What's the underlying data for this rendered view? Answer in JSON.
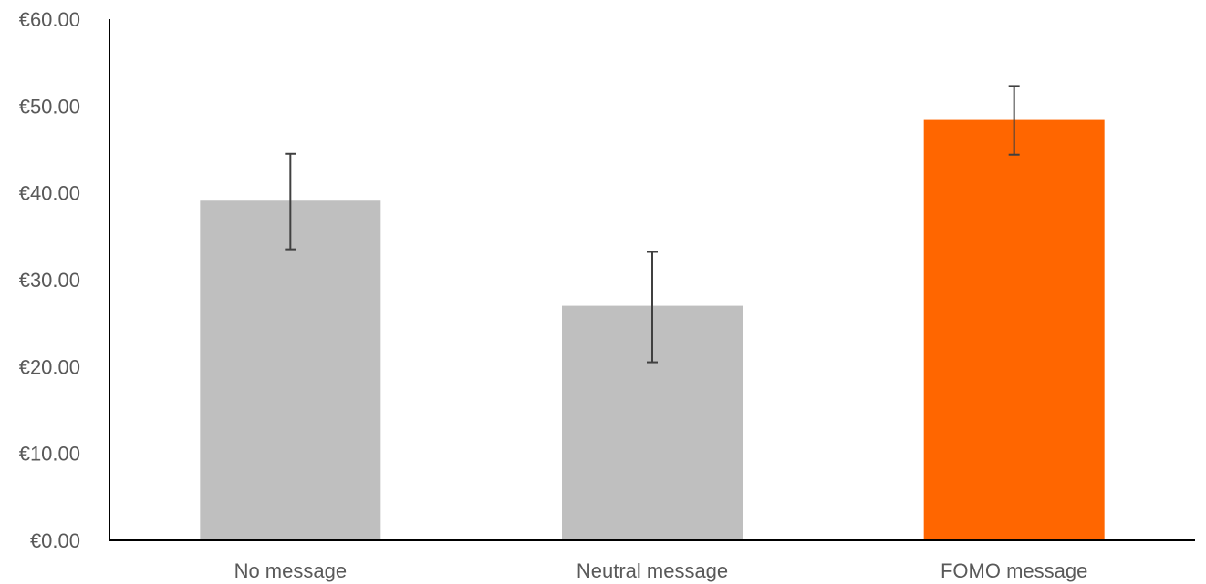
{
  "chart_data": {
    "type": "bar",
    "title": "",
    "xlabel": "",
    "ylabel": "",
    "categories": [
      "No message",
      "Neutral message",
      "FOMO message"
    ],
    "values": [
      39.1,
      27.0,
      48.4
    ],
    "error_low": [
      33.5,
      20.5,
      44.4
    ],
    "error_high": [
      44.5,
      33.2,
      52.3
    ],
    "bar_colors": [
      "#bfbfbf",
      "#bfbfbf",
      "#ff6600"
    ],
    "ylim": [
      0,
      60
    ],
    "yticks": [
      0,
      10,
      20,
      30,
      40,
      50,
      60
    ],
    "ytick_labels": [
      "€0.00",
      "€10.00",
      "€20.00",
      "€30.00",
      "€40.00",
      "€50.00",
      "€60.00"
    ],
    "grid": false,
    "legend": "none",
    "colors": {
      "axis": "#000000",
      "error_bar": "#404040",
      "text": "#595959"
    }
  }
}
